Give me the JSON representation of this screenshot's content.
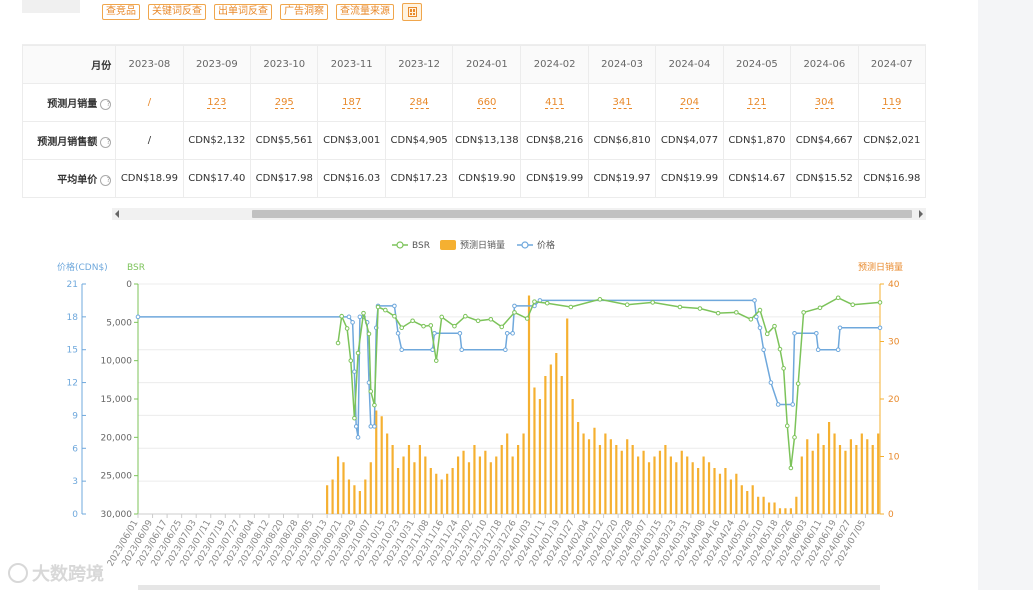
{
  "toolbar": {
    "buttons": [
      "查竞品",
      "关键词反查",
      "出单词反查",
      "广告洞察",
      "查流量来源"
    ],
    "calculator_icon": "calculator-icon"
  },
  "table": {
    "header_label": "月份",
    "months": [
      "2023-08",
      "2023-09",
      "2023-10",
      "2023-11",
      "2023-12",
      "2024-01",
      "2024-02",
      "2024-03",
      "2024-04",
      "2024-05",
      "2024-06",
      "2024-07"
    ],
    "rows": [
      {
        "label": "预测月销量",
        "help": "?",
        "kind": "sales",
        "values": [
          "/",
          "123",
          "295",
          "187",
          "284",
          "660",
          "411",
          "341",
          "204",
          "121",
          "304",
          "119"
        ]
      },
      {
        "label": "预测月销售额",
        "help": "?",
        "kind": "money",
        "values": [
          "/",
          "CDN$2,132",
          "CDN$5,561",
          "CDN$3,001",
          "CDN$4,905",
          "CDN$13,138",
          "CDN$8,216",
          "CDN$6,810",
          "CDN$4,077",
          "CDN$1,870",
          "CDN$4,667",
          "CDN$2,021"
        ]
      },
      {
        "label": "平均单价",
        "help": "?",
        "kind": "money",
        "values": [
          "CDN$18.99",
          "CDN$17.40",
          "CDN$17.98",
          "CDN$16.03",
          "CDN$17.23",
          "CDN$19.90",
          "CDN$19.99",
          "CDN$19.97",
          "CDN$19.99",
          "CDN$14.67",
          "CDN$15.52",
          "CDN$16.98"
        ]
      }
    ]
  },
  "chart_data": {
    "type": "bar",
    "legend": [
      "BSR",
      "预测日销量",
      "价格"
    ],
    "legend_position": "top-center",
    "axes": {
      "price": {
        "label": "价格(CDN$)",
        "ticks": [
          "21",
          "18",
          "15",
          "12",
          "9",
          "6",
          "3",
          "0"
        ],
        "range": [
          0,
          21
        ]
      },
      "bsr": {
        "label": "BSR",
        "ticks": [
          "0",
          "5,000",
          "10,000",
          "15,000",
          "20,000",
          "25,000",
          "30,000"
        ],
        "range": [
          0,
          30000
        ],
        "inverted": true
      },
      "sales": {
        "label": "预测日销量",
        "ticks": [
          "40",
          "30",
          "20",
          "10",
          "0"
        ],
        "range": [
          0,
          40
        ]
      }
    },
    "x_start": "2023-06-01",
    "x_end": "2024-07-13",
    "x_tick_labels": [
      "2023/06/01",
      "2023/06/09",
      "2023/06/17",
      "2023/06/25",
      "2023/07/03",
      "2023/07/11",
      "2023/07/19",
      "2023/07/27",
      "2023/08/04",
      "2023/08/12",
      "2023/08/20",
      "2023/08/28",
      "2023/09/05",
      "2023/09/13",
      "2023/09/21",
      "2023/09/29",
      "2023/10/07",
      "2023/10/15",
      "2023/10/23",
      "2023/10/31",
      "2023/11/08",
      "2023/11/16",
      "2023/11/24",
      "2023/12/02",
      "2023/12/10",
      "2023/12/18",
      "2023/12/26",
      "2024/01/03",
      "2024/01/11",
      "2024/01/19",
      "2024/01/27",
      "2024/02/04",
      "2024/02/12",
      "2024/02/20",
      "2024/02/28",
      "2024/03/07",
      "2024/03/15",
      "2024/03/23",
      "2024/03/31",
      "2024/04/08",
      "2024/04/16",
      "2024/04/24",
      "2024/05/02",
      "2024/05/10",
      "2024/05/18",
      "2024/05/26",
      "2024/06/03",
      "2024/06/11",
      "2024/06/19",
      "2024/06/27",
      "2024/07/05"
    ],
    "series": [
      {
        "name": "价格",
        "axis": "price",
        "color": "#6fa8dc",
        "points": [
          [
            "2023-06-01",
            18.0
          ],
          [
            "2023-09-25",
            18.0
          ],
          [
            "2023-09-27",
            17.5
          ],
          [
            "2023-09-28",
            13.0
          ],
          [
            "2023-09-29",
            8.0
          ],
          [
            "2023-09-30",
            7.0
          ],
          [
            "2023-10-01",
            18.0
          ],
          [
            "2023-10-03",
            18.0
          ],
          [
            "2023-10-05",
            17.5
          ],
          [
            "2023-10-06",
            12.0
          ],
          [
            "2023-10-07",
            8.0
          ],
          [
            "2023-10-09",
            8.0
          ],
          [
            "2023-10-10",
            17.0
          ],
          [
            "2023-10-11",
            19.0
          ],
          [
            "2023-10-20",
            19.0
          ],
          [
            "2023-10-22",
            16.5
          ],
          [
            "2023-10-24",
            15.0
          ],
          [
            "2023-11-10",
            15.0
          ],
          [
            "2023-11-11",
            16.5
          ],
          [
            "2023-11-25",
            16.5
          ],
          [
            "2023-11-26",
            15.0
          ],
          [
            "2023-12-20",
            15.0
          ],
          [
            "2023-12-21",
            16.5
          ],
          [
            "2023-12-24",
            16.5
          ],
          [
            "2023-12-25",
            19.0
          ],
          [
            "2024-01-05",
            19.0
          ],
          [
            "2024-01-08",
            19.5
          ],
          [
            "2024-05-05",
            19.5
          ],
          [
            "2024-05-06",
            18.0
          ],
          [
            "2024-05-08",
            17.0
          ],
          [
            "2024-05-10",
            15.0
          ],
          [
            "2024-05-14",
            12.0
          ],
          [
            "2024-05-18",
            10.0
          ],
          [
            "2024-05-26",
            10.0
          ],
          [
            "2024-05-27",
            16.5
          ],
          [
            "2024-06-08",
            16.5
          ],
          [
            "2024-06-09",
            15.0
          ],
          [
            "2024-06-20",
            15.0
          ],
          [
            "2024-06-21",
            17.0
          ],
          [
            "2024-07-13",
            17.0
          ]
        ]
      },
      {
        "name": "BSR",
        "axis": "bsr",
        "color": "#7cc35a",
        "points": [
          [
            "2023-09-19",
            7700
          ],
          [
            "2023-09-21",
            4200
          ],
          [
            "2023-09-24",
            5800
          ],
          [
            "2023-09-26",
            10000
          ],
          [
            "2023-09-28",
            17500
          ],
          [
            "2023-09-30",
            9000
          ],
          [
            "2023-10-03",
            3800
          ],
          [
            "2023-10-06",
            6500
          ],
          [
            "2023-10-07",
            14000
          ],
          [
            "2023-10-09",
            15800
          ],
          [
            "2023-10-11",
            3000
          ],
          [
            "2023-10-15",
            3400
          ],
          [
            "2023-10-20",
            4200
          ],
          [
            "2023-10-24",
            5700
          ],
          [
            "2023-10-30",
            4800
          ],
          [
            "2023-11-05",
            5500
          ],
          [
            "2023-11-09",
            5400
          ],
          [
            "2023-11-12",
            10000
          ],
          [
            "2023-11-15",
            4300
          ],
          [
            "2023-11-22",
            5500
          ],
          [
            "2023-11-28",
            4200
          ],
          [
            "2023-12-05",
            4800
          ],
          [
            "2023-12-12",
            4600
          ],
          [
            "2023-12-18",
            5600
          ],
          [
            "2023-12-25",
            3700
          ],
          [
            "2024-01-01",
            4500
          ],
          [
            "2024-01-05",
            2300
          ],
          [
            "2024-01-12",
            2500
          ],
          [
            "2024-01-25",
            3000
          ],
          [
            "2024-02-10",
            2000
          ],
          [
            "2024-02-25",
            2700
          ],
          [
            "2024-03-10",
            2400
          ],
          [
            "2024-03-25",
            3000
          ],
          [
            "2024-04-05",
            3200
          ],
          [
            "2024-04-15",
            3800
          ],
          [
            "2024-04-25",
            3700
          ],
          [
            "2024-05-03",
            4600
          ],
          [
            "2024-05-08",
            3400
          ],
          [
            "2024-05-12",
            6500
          ],
          [
            "2024-05-16",
            5500
          ],
          [
            "2024-05-19",
            8500
          ],
          [
            "2024-05-21",
            11000
          ],
          [
            "2024-05-23",
            18500
          ],
          [
            "2024-05-25",
            24000
          ],
          [
            "2024-05-27",
            20000
          ],
          [
            "2024-05-29",
            13000
          ],
          [
            "2024-06-01",
            3700
          ],
          [
            "2024-06-10",
            3100
          ],
          [
            "2024-06-20",
            1800
          ],
          [
            "2024-06-28",
            2700
          ],
          [
            "2024-07-13",
            2400
          ]
        ]
      },
      {
        "name": "预测日销量",
        "axis": "sales",
        "color": "#f5b031",
        "bars": [
          [
            "2023-09-13",
            5
          ],
          [
            "2023-09-16",
            6
          ],
          [
            "2023-09-19",
            10
          ],
          [
            "2023-09-22",
            9
          ],
          [
            "2023-09-25",
            6
          ],
          [
            "2023-09-28",
            5
          ],
          [
            "2023-10-01",
            4
          ],
          [
            "2023-10-04",
            6
          ],
          [
            "2023-10-07",
            9
          ],
          [
            "2023-10-10",
            18
          ],
          [
            "2023-10-13",
            17
          ],
          [
            "2023-10-16",
            14
          ],
          [
            "2023-10-19",
            12
          ],
          [
            "2023-10-22",
            8
          ],
          [
            "2023-10-25",
            10
          ],
          [
            "2023-10-28",
            12
          ],
          [
            "2023-10-31",
            9
          ],
          [
            "2023-11-03",
            12
          ],
          [
            "2023-11-06",
            10
          ],
          [
            "2023-11-09",
            8
          ],
          [
            "2023-11-12",
            7
          ],
          [
            "2023-11-15",
            6
          ],
          [
            "2023-11-18",
            7
          ],
          [
            "2023-11-21",
            8
          ],
          [
            "2023-11-24",
            10
          ],
          [
            "2023-11-27",
            11
          ],
          [
            "2023-11-30",
            9
          ],
          [
            "2023-12-03",
            12
          ],
          [
            "2023-12-06",
            10
          ],
          [
            "2023-12-09",
            11
          ],
          [
            "2023-12-12",
            9
          ],
          [
            "2023-12-15",
            10
          ],
          [
            "2023-12-18",
            12
          ],
          [
            "2023-12-21",
            14
          ],
          [
            "2023-12-24",
            10
          ],
          [
            "2023-12-27",
            12
          ],
          [
            "2023-12-30",
            14
          ],
          [
            "2024-01-02",
            38
          ],
          [
            "2024-01-05",
            22
          ],
          [
            "2024-01-08",
            20
          ],
          [
            "2024-01-11",
            24
          ],
          [
            "2024-01-14",
            26
          ],
          [
            "2024-01-17",
            28
          ],
          [
            "2024-01-20",
            24
          ],
          [
            "2024-01-23",
            34
          ],
          [
            "2024-01-26",
            20
          ],
          [
            "2024-01-29",
            16
          ],
          [
            "2024-02-01",
            14
          ],
          [
            "2024-02-04",
            13
          ],
          [
            "2024-02-07",
            15
          ],
          [
            "2024-02-10",
            12
          ],
          [
            "2024-02-13",
            14
          ],
          [
            "2024-02-16",
            13
          ],
          [
            "2024-02-19",
            12
          ],
          [
            "2024-02-22",
            11
          ],
          [
            "2024-02-25",
            13
          ],
          [
            "2024-02-28",
            12
          ],
          [
            "2024-03-02",
            10
          ],
          [
            "2024-03-05",
            11
          ],
          [
            "2024-03-08",
            9
          ],
          [
            "2024-03-11",
            10
          ],
          [
            "2024-03-14",
            11
          ],
          [
            "2024-03-17",
            12
          ],
          [
            "2024-03-20",
            10
          ],
          [
            "2024-03-23",
            9
          ],
          [
            "2024-03-26",
            11
          ],
          [
            "2024-03-29",
            10
          ],
          [
            "2024-04-01",
            9
          ],
          [
            "2024-04-04",
            8
          ],
          [
            "2024-04-07",
            10
          ],
          [
            "2024-04-10",
            9
          ],
          [
            "2024-04-13",
            8
          ],
          [
            "2024-04-16",
            7
          ],
          [
            "2024-04-19",
            8
          ],
          [
            "2024-04-22",
            6
          ],
          [
            "2024-04-25",
            7
          ],
          [
            "2024-04-28",
            5
          ],
          [
            "2024-05-01",
            4
          ],
          [
            "2024-05-04",
            5
          ],
          [
            "2024-05-07",
            3
          ],
          [
            "2024-05-10",
            3
          ],
          [
            "2024-05-13",
            2
          ],
          [
            "2024-05-16",
            2
          ],
          [
            "2024-05-19",
            1
          ],
          [
            "2024-05-22",
            1
          ],
          [
            "2024-05-25",
            1
          ],
          [
            "2024-05-28",
            3
          ],
          [
            "2024-05-31",
            10
          ],
          [
            "2024-06-03",
            13
          ],
          [
            "2024-06-06",
            11
          ],
          [
            "2024-06-09",
            14
          ],
          [
            "2024-06-12",
            12
          ],
          [
            "2024-06-15",
            16
          ],
          [
            "2024-06-18",
            14
          ],
          [
            "2024-06-21",
            12
          ],
          [
            "2024-06-24",
            11
          ],
          [
            "2024-06-27",
            13
          ],
          [
            "2024-06-30",
            12
          ],
          [
            "2024-07-03",
            14
          ],
          [
            "2024-07-06",
            13
          ],
          [
            "2024-07-09",
            12
          ],
          [
            "2024-07-12",
            14
          ]
        ]
      }
    ]
  },
  "watermark": {
    "text": "大数跨境"
  }
}
